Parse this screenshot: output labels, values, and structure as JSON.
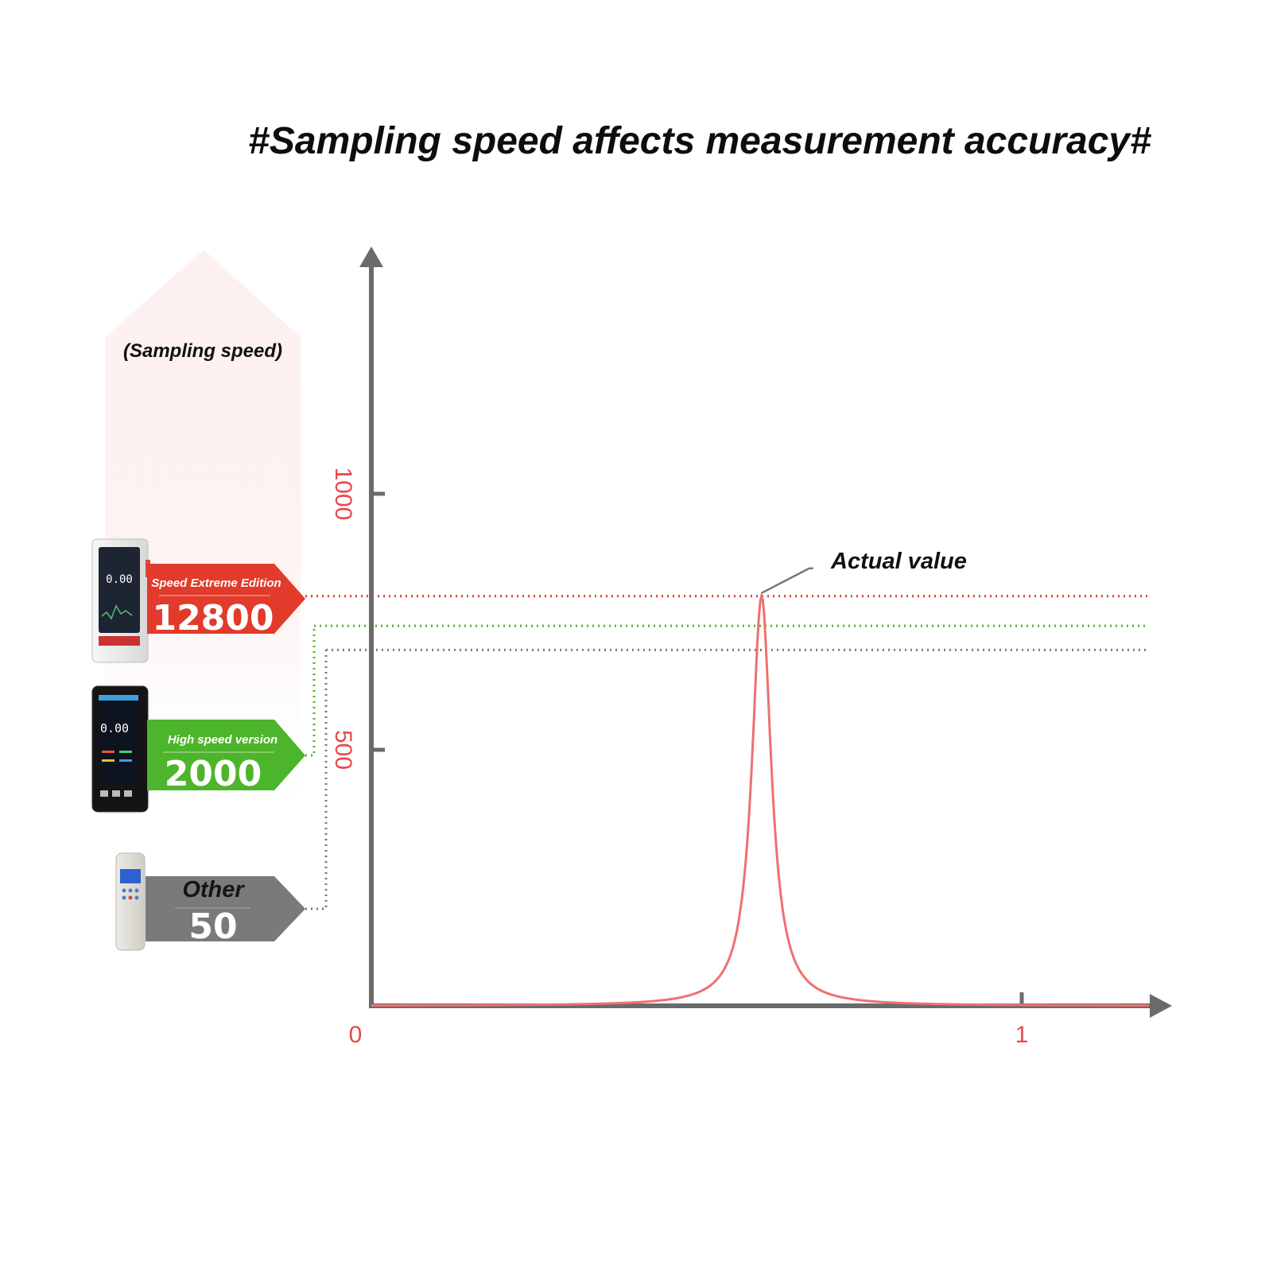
{
  "page": {
    "title": "#Sampling speed affects measurement accuracy#",
    "side_label": "(Sampling speed)"
  },
  "colors": {
    "axis": "#6b6b6b",
    "red": "#e23a2b",
    "green": "#4db52b",
    "gray": "#7a7a7a",
    "curve": "#ef7070",
    "tick_text": "#e8484b"
  },
  "chart_data": {
    "type": "line",
    "title": "#Sampling speed affects measurement accuracy#",
    "xlabel": "",
    "ylabel": "",
    "xlim": [
      0,
      1.2
    ],
    "ylim": [
      0,
      1300
    ],
    "x_ticks": [
      {
        "value": 0,
        "label": "0"
      },
      {
        "value": 1,
        "label": "1"
      }
    ],
    "y_ticks": [
      {
        "value": 500,
        "label": "500"
      },
      {
        "value": 1000,
        "label": "1000"
      }
    ],
    "series": [
      {
        "peak_x": 0.6,
        "peak_y": 800,
        "x": [
          0,
          0.2,
          0.4,
          0.5,
          0.55,
          0.58,
          0.59,
          0.6,
          0.61,
          0.62,
          0.65,
          0.7,
          0.8,
          1.0,
          1.2
        ],
        "y": [
          2,
          4,
          15,
          58,
          180,
          440,
          620,
          800,
          620,
          440,
          180,
          58,
          15,
          4,
          2
        ]
      }
    ],
    "reference_lines": [
      {
        "device": "Speed Extreme Edition",
        "sampling_speed": "12800",
        "y": 800,
        "color": "#e23a2b"
      },
      {
        "device": "High speed version",
        "sampling_speed": "2000",
        "y": 742,
        "color": "#4db52b"
      },
      {
        "device": "Other",
        "sampling_speed": "50",
        "y": 695,
        "color": "#7a7a7a"
      }
    ],
    "annotations": [
      {
        "text": "Actual value",
        "x": 0.6,
        "y": 800
      }
    ]
  },
  "devices": [
    {
      "name": "Speed Extreme Edition",
      "speed": "12800",
      "color": "#e23a2b",
      "screen_value": "0.00"
    },
    {
      "name": "High speed version",
      "speed": "2000",
      "color": "#4db52b",
      "screen_value": "0.00"
    },
    {
      "name": "Other",
      "speed": "50",
      "color": "#7a7a7a"
    }
  ]
}
